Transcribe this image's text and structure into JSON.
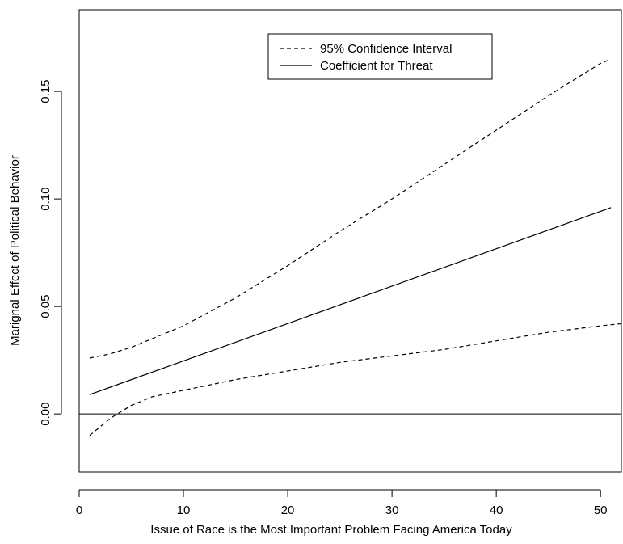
{
  "chart_data": {
    "type": "line",
    "title": "",
    "xlabel": "Issue of Race is the Most Important Problem Facing America Today",
    "ylabel": "Marignal Effect of Political Behavior",
    "xlim": [
      0,
      52
    ],
    "ylim": [
      -0.027,
      0.188
    ],
    "x_ticks": [
      0,
      10,
      20,
      30,
      40,
      50
    ],
    "x_tick_labels": [
      "0",
      "10",
      "20",
      "30",
      "40",
      "50"
    ],
    "y_ticks": [
      0.0,
      0.05,
      0.1,
      0.15
    ],
    "y_tick_labels": [
      "0.00",
      "0.05",
      "0.10",
      "0.15"
    ],
    "reference_line_y": 0,
    "grid": false,
    "legend": {
      "position": "top-right",
      "boxed": true
    },
    "series": [
      {
        "name": "95% Confidence Interval",
        "style": "dashed",
        "color": "#000000",
        "x": [
          1,
          3,
          5,
          7,
          10,
          15,
          20,
          25,
          30,
          35,
          40,
          45,
          50,
          52
        ],
        "y": [
          -0.01,
          -0.002,
          0.004,
          0.008,
          0.011,
          0.016,
          0.02,
          0.024,
          0.027,
          0.03,
          0.034,
          0.038,
          0.041,
          0.042
        ]
      },
      {
        "name": "",
        "style": "dashed",
        "color": "#000000",
        "x": [
          1,
          3,
          5,
          7,
          10,
          15,
          20,
          25,
          30,
          35,
          40,
          45,
          50,
          51
        ],
        "y": [
          0.026,
          0.028,
          0.031,
          0.035,
          0.041,
          0.054,
          0.069,
          0.085,
          0.1,
          0.116,
          0.132,
          0.148,
          0.163,
          0.165
        ]
      },
      {
        "name": "Coefficient for Threat",
        "style": "solid",
        "color": "#000000",
        "x": [
          1,
          51
        ],
        "y": [
          0.009,
          0.096
        ]
      }
    ]
  }
}
